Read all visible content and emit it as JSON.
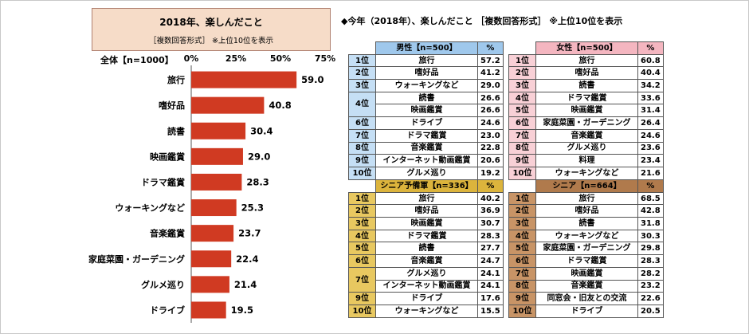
{
  "title_box": {
    "title": "2018年、楽しんだこと",
    "subtitle": "［複数回答形式］ ※上位10位を表示"
  },
  "right_header": "◆今年（2018年）、楽しんだこと ［複数回答形式］ ※上位10位を表示",
  "chart_data": {
    "type": "bar",
    "orientation": "horizontal",
    "title": "2018年、楽しんだこと",
    "subtitle": "［複数回答形式］ ※上位10位を表示",
    "axis_total_label": "全体【n=1000】",
    "ticks": [
      "0%",
      "25%",
      "50%",
      "75%"
    ],
    "xlim": [
      0,
      75
    ],
    "categories": [
      "旅行",
      "嗜好品",
      "読書",
      "映画鑑賞",
      "ドラマ鑑賞",
      "ウォーキングなど",
      "音楽鑑賞",
      "家庭菜園・ガーデニング",
      "グルメ巡り",
      "ドライブ"
    ],
    "values": [
      59.0,
      40.8,
      30.4,
      29.0,
      28.3,
      25.3,
      23.7,
      22.4,
      21.4,
      19.5
    ],
    "value_labels": [
      "59.0",
      "40.8",
      "30.4",
      "29.0",
      "28.3",
      "25.3",
      "23.7",
      "22.4",
      "21.4",
      "19.5"
    ],
    "bar_color": "#d03a22"
  },
  "tables": [
    {
      "id": "male",
      "header": "男性【n=500】",
      "pct_header": "%",
      "header_color": "#9fc8ec",
      "rank_color": "#c5dff5",
      "rows": [
        {
          "rank": "1位",
          "name": "旅行",
          "pct": "57.2"
        },
        {
          "rank": "2位",
          "name": "嗜好品",
          "pct": "41.2"
        },
        {
          "rank": "3位",
          "name": "ウォーキングなど",
          "pct": "29.0"
        },
        {
          "rank": "4位",
          "name": "読書",
          "pct": "26.6",
          "span": 2
        },
        {
          "rank": "",
          "name": "映画鑑賞",
          "pct": "26.6",
          "cont": true
        },
        {
          "rank": "6位",
          "name": "ドライブ",
          "pct": "24.6"
        },
        {
          "rank": "7位",
          "name": "ドラマ鑑賞",
          "pct": "23.0"
        },
        {
          "rank": "8位",
          "name": "音楽鑑賞",
          "pct": "22.8"
        },
        {
          "rank": "9位",
          "name": "インターネット動画鑑賞",
          "pct": "20.6"
        },
        {
          "rank": "10位",
          "name": "グルメ巡り",
          "pct": "19.2"
        }
      ]
    },
    {
      "id": "female",
      "header": "女性【n=500】",
      "pct_header": "%",
      "header_color": "#f4b6c0",
      "rank_color": "#f8d0d6",
      "rows": [
        {
          "rank": "1位",
          "name": "旅行",
          "pct": "60.8"
        },
        {
          "rank": "2位",
          "name": "嗜好品",
          "pct": "40.4"
        },
        {
          "rank": "3位",
          "name": "読書",
          "pct": "34.2"
        },
        {
          "rank": "4位",
          "name": "ドラマ鑑賞",
          "pct": "33.6"
        },
        {
          "rank": "5位",
          "name": "映画鑑賞",
          "pct": "31.4"
        },
        {
          "rank": "6位",
          "name": "家庭菜園・ガーデニング",
          "pct": "26.4"
        },
        {
          "rank": "7位",
          "name": "音楽鑑賞",
          "pct": "24.6"
        },
        {
          "rank": "8位",
          "name": "グルメ巡り",
          "pct": "23.6"
        },
        {
          "rank": "9位",
          "name": "料理",
          "pct": "23.4"
        },
        {
          "rank": "10位",
          "name": "ウォーキングなど",
          "pct": "21.6"
        }
      ]
    },
    {
      "id": "pre-senior",
      "header": "シニア予備軍【n=336】",
      "pct_header": "%",
      "header_color": "#dcb43c",
      "rank_color": "#e8c860",
      "rows": [
        {
          "rank": "1位",
          "name": "旅行",
          "pct": "40.2"
        },
        {
          "rank": "2位",
          "name": "嗜好品",
          "pct": "36.9"
        },
        {
          "rank": "3位",
          "name": "映画鑑賞",
          "pct": "30.7"
        },
        {
          "rank": "4位",
          "name": "ドラマ鑑賞",
          "pct": "28.3"
        },
        {
          "rank": "5位",
          "name": "読書",
          "pct": "27.7"
        },
        {
          "rank": "6位",
          "name": "音楽鑑賞",
          "pct": "24.7"
        },
        {
          "rank": "7位",
          "name": "グルメ巡り",
          "pct": "24.1",
          "span": 2
        },
        {
          "rank": "",
          "name": "インターネット動画鑑賞",
          "pct": "24.1",
          "cont": true
        },
        {
          "rank": "9位",
          "name": "ドライブ",
          "pct": "17.6"
        },
        {
          "rank": "10位",
          "name": "ウォーキングなど",
          "pct": "15.5"
        }
      ]
    },
    {
      "id": "senior",
      "header": "シニア【n=664】",
      "pct_header": "%",
      "header_color": "#b07a4c",
      "rank_color": "#c89466",
      "rows": [
        {
          "rank": "1位",
          "name": "旅行",
          "pct": "68.5"
        },
        {
          "rank": "2位",
          "name": "嗜好品",
          "pct": "42.8"
        },
        {
          "rank": "3位",
          "name": "読書",
          "pct": "31.8"
        },
        {
          "rank": "4位",
          "name": "ウォーキングなど",
          "pct": "30.3"
        },
        {
          "rank": "5位",
          "name": "家庭菜園・ガーデニング",
          "pct": "29.8"
        },
        {
          "rank": "6位",
          "name": "ドラマ鑑賞",
          "pct": "28.3"
        },
        {
          "rank": "7位",
          "name": "映画鑑賞",
          "pct": "28.2"
        },
        {
          "rank": "8位",
          "name": "音楽鑑賞",
          "pct": "23.2"
        },
        {
          "rank": "9位",
          "name": "同窓会・旧友との交流",
          "pct": "22.6"
        },
        {
          "rank": "10位",
          "name": "ドライブ",
          "pct": "20.5"
        }
      ]
    }
  ]
}
